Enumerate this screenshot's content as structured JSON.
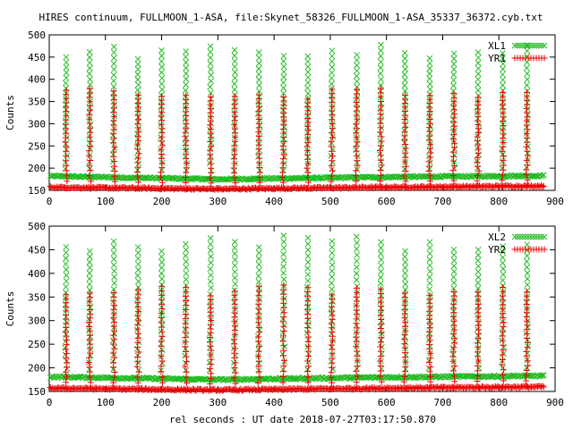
{
  "title": "HIRES continuum, FULLMOON_1-ASA, file:Skynet_58326_FULLMOON_1-ASA_35337_36372.cyb.txt",
  "xlabel_bottom": "rel seconds : UT date 2018-07-27T03:17:50.870",
  "colors": {
    "x_series": "#22bb22",
    "y_series": "#ee0000"
  },
  "chart_data": [
    {
      "type": "scatter",
      "ylabel": "Counts",
      "xlim": [
        0,
        900
      ],
      "ylim": [
        150,
        500
      ],
      "x_ticks": [
        0,
        100,
        200,
        300,
        400,
        500,
        600,
        700,
        800,
        900
      ],
      "y_ticks": [
        150,
        200,
        250,
        300,
        350,
        400,
        450,
        500
      ],
      "grid": false,
      "legend_position": "top-right",
      "series": [
        {
          "name": "XL1",
          "marker": "x",
          "color": "#22bb22",
          "baseline": [
            [
              0,
              182
            ],
            [
              300,
              175
            ],
            [
              600,
              180
            ],
            [
              880,
              183
            ]
          ],
          "peak_max": 478
        },
        {
          "name": "YR1",
          "marker": "+",
          "color": "#ee0000",
          "baseline": [
            [
              0,
              157
            ],
            [
              300,
              153
            ],
            [
              600,
              157
            ],
            [
              880,
              160
            ]
          ],
          "peak_max": 380
        }
      ],
      "peak_x": [
        30,
        72,
        115,
        158,
        200,
        243,
        287,
        330,
        373,
        417,
        460,
        503,
        547,
        590,
        633,
        677,
        720,
        763,
        807,
        850
      ]
    },
    {
      "type": "scatter",
      "ylabel": "Counts",
      "xlim": [
        0,
        900
      ],
      "ylim": [
        150,
        500
      ],
      "x_ticks": [
        0,
        100,
        200,
        300,
        400,
        500,
        600,
        700,
        800,
        900
      ],
      "y_ticks": [
        150,
        200,
        250,
        300,
        350,
        400,
        450,
        500
      ],
      "grid": false,
      "legend_position": "top-right",
      "series": [
        {
          "name": "XL2",
          "marker": "x",
          "color": "#22bb22",
          "baseline": [
            [
              0,
              181
            ],
            [
              300,
              175
            ],
            [
              600,
              180
            ],
            [
              880,
              183
            ]
          ],
          "peak_max": 480
        },
        {
          "name": "YR2",
          "marker": "+",
          "color": "#ee0000",
          "baseline": [
            [
              0,
              157
            ],
            [
              300,
              153
            ],
            [
              600,
              157
            ],
            [
              880,
              160
            ]
          ],
          "peak_max": 375
        }
      ],
      "peak_x": [
        30,
        72,
        115,
        158,
        200,
        243,
        287,
        330,
        373,
        417,
        460,
        503,
        547,
        590,
        633,
        677,
        720,
        763,
        807,
        850
      ]
    }
  ]
}
